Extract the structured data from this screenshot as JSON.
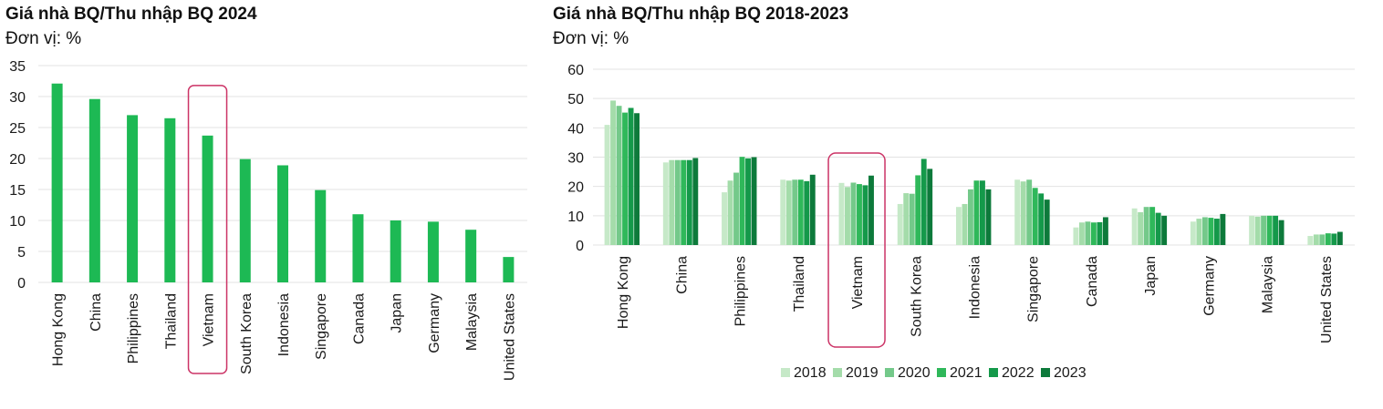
{
  "charts": [
    {
      "title": "Giá nhà BQ/Thu nhập BQ 2024",
      "unit": "Đơn vị: %"
    },
    {
      "title": "Giá nhà BQ/Thu nhập BQ 2018-2023",
      "unit": "Đơn vị: %"
    }
  ],
  "chart_data": [
    {
      "type": "bar",
      "title": "Giá nhà BQ/Thu nhập BQ 2024",
      "ylabel": "Đơn vị: %",
      "categories": [
        "Hong Kong",
        "China",
        "Philippines",
        "Thailand",
        "Vietnam",
        "South Korea",
        "Indonesia",
        "Singapore",
        "Canada",
        "Japan",
        "Germany",
        "Malaysia",
        "United States"
      ],
      "values": [
        32.1,
        29.6,
        27.0,
        26.5,
        23.7,
        19.9,
        18.9,
        14.9,
        11.0,
        10.0,
        9.8,
        8.5,
        4.1
      ],
      "ylim": [
        0,
        35
      ],
      "yticks": [
        0,
        5,
        10,
        15,
        20,
        25,
        30,
        35
      ],
      "grid": true,
      "color": "#1db954",
      "highlight": "Vietnam",
      "highlight_color": "#cc3366"
    },
    {
      "type": "bar",
      "title": "Giá nhà BQ/Thu nhập BQ 2018-2023",
      "ylabel": "Đơn vị: %",
      "categories": [
        "Hong Kong",
        "China",
        "Philippines",
        "Thailand",
        "Vietnam",
        "South Korea",
        "Indonesia",
        "Singapore",
        "Canada",
        "Japan",
        "Germany",
        "Malaysia",
        "United States"
      ],
      "series": [
        {
          "name": "2018",
          "color": "#c6e9c8",
          "values": [
            41,
            28.2,
            18,
            22.3,
            21.2,
            14,
            13,
            22.3,
            6,
            12.5,
            8,
            10,
            3.1
          ]
        },
        {
          "name": "2019",
          "color": "#a4dcaa",
          "values": [
            49.3,
            29,
            22,
            22,
            19.8,
            17.7,
            14,
            21.7,
            7.7,
            11.2,
            9,
            9.7,
            3.6
          ]
        },
        {
          "name": "2020",
          "color": "#74c98a",
          "values": [
            47.5,
            29,
            24.7,
            22.3,
            21.3,
            17.5,
            19,
            22.3,
            8,
            13,
            9.5,
            10,
            3.6
          ]
        },
        {
          "name": "2021",
          "color": "#2fb85a",
          "values": [
            45.2,
            29,
            30.1,
            22.3,
            20.8,
            23.8,
            22,
            19.5,
            7.7,
            13,
            9.3,
            10,
            4
          ]
        },
        {
          "name": "2022",
          "color": "#14994a",
          "values": [
            46.8,
            29,
            29.6,
            21.8,
            20.4,
            29.4,
            22,
            17.6,
            7.8,
            11,
            9,
            10,
            3.9
          ]
        },
        {
          "name": "2023",
          "color": "#0d7a3b",
          "values": [
            45,
            29.7,
            30,
            24,
            23.7,
            26,
            19,
            15.5,
            9.5,
            10,
            10.6,
            8.5,
            4.5
          ]
        }
      ],
      "ylim": [
        0,
        60
      ],
      "yticks": [
        0,
        10,
        20,
        30,
        40,
        50,
        60
      ],
      "grid": true,
      "legend": "bottom",
      "highlight": "Vietnam",
      "highlight_color": "#cc3366"
    }
  ]
}
